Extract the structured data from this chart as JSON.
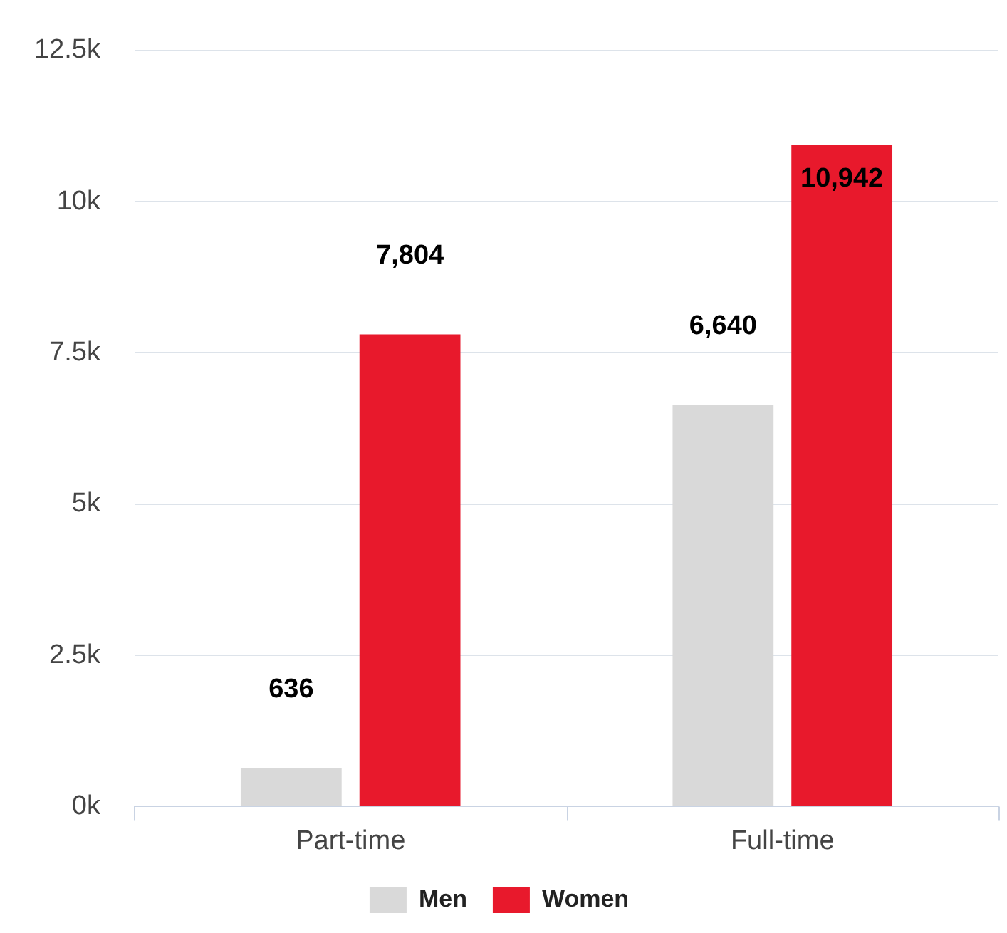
{
  "chart_data": {
    "type": "bar",
    "categories": [
      "Part-time",
      "Full-time"
    ],
    "series": [
      {
        "name": "Men",
        "color": "#d9d9d9",
        "values": [
          636,
          6640
        ],
        "value_labels": [
          "636",
          "6,640"
        ]
      },
      {
        "name": "Women",
        "color": "#e8192c",
        "values": [
          7804,
          10942
        ],
        "value_labels": [
          "7,804",
          "10,942"
        ]
      }
    ],
    "ylim": [
      0,
      12500
    ],
    "yticks": [
      {
        "value": 0,
        "label": "0k"
      },
      {
        "value": 2500,
        "label": "2.5k"
      },
      {
        "value": 5000,
        "label": "5k"
      },
      {
        "value": 7500,
        "label": "7.5k"
      },
      {
        "value": 10000,
        "label": "10k"
      },
      {
        "value": 12500,
        "label": "12.5k"
      }
    ],
    "grid": "y",
    "legend": "bottom"
  }
}
